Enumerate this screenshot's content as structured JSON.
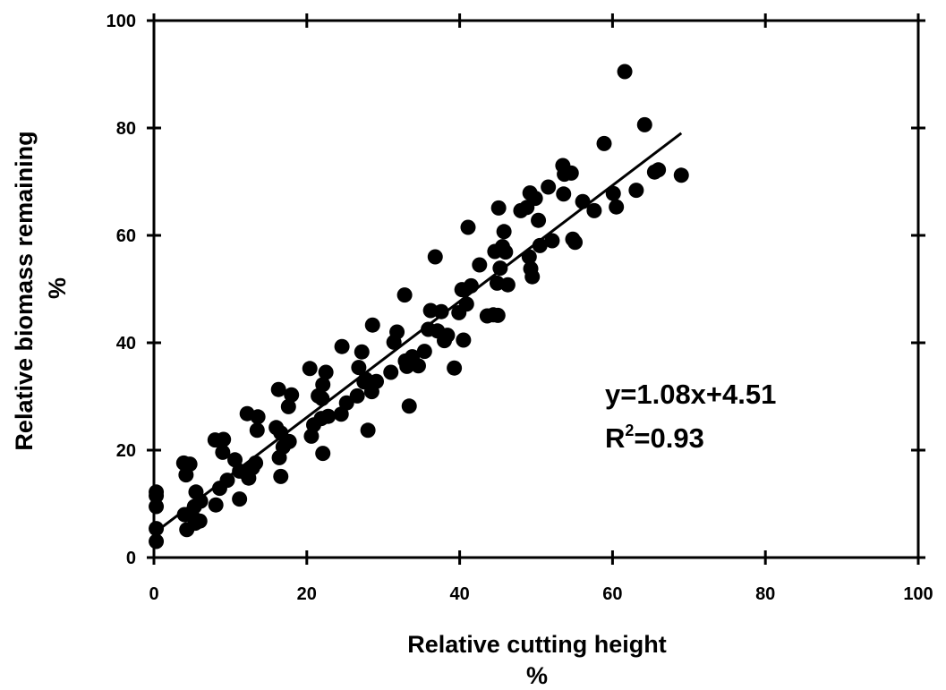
{
  "chart_data": {
    "type": "scatter",
    "title": "",
    "xlabel": "Relative cutting height",
    "xunit": "%",
    "ylabel": "Relative biomass remaining",
    "yunit": "%",
    "xlim": [
      0,
      100
    ],
    "ylim": [
      0,
      100
    ],
    "xticks": [
      "0",
      "20",
      "40",
      "60",
      "80",
      "100"
    ],
    "yticks": [
      "0",
      "20",
      "40",
      "60",
      "80",
      "100"
    ],
    "grid": false,
    "legend": "none",
    "annotation": {
      "equation": "y=1.08x+4.51",
      "r2_prefix": "R",
      "r2_exponent": "2",
      "r2_value": "=0.93"
    },
    "trendline": {
      "slope": 1.08,
      "intercept": 4.51,
      "x_start": 0,
      "x_end": 69
    },
    "marker_color": "#000000",
    "points": [
      [
        0.3,
        12.2
      ],
      [
        0.3,
        11.5
      ],
      [
        0.3,
        9.5
      ],
      [
        0.3,
        5.4
      ],
      [
        0.3,
        3.0
      ],
      [
        3.9,
        17.6
      ],
      [
        4.2,
        15.4
      ],
      [
        4.7,
        17.4
      ],
      [
        4.0,
        8.0
      ],
      [
        4.3,
        5.2
      ],
      [
        5.0,
        7.8
      ],
      [
        5.3,
        9.5
      ],
      [
        5.5,
        12.2
      ],
      [
        5.4,
        6.4
      ],
      [
        6.0,
        6.8
      ],
      [
        6.1,
        10.5
      ],
      [
        8.0,
        21.9
      ],
      [
        8.1,
        9.8
      ],
      [
        8.6,
        12.9
      ],
      [
        9.1,
        22.0
      ],
      [
        9.0,
        19.6
      ],
      [
        9.6,
        14.4
      ],
      [
        10.6,
        18.2
      ],
      [
        11.2,
        10.9
      ],
      [
        11.2,
        16.1
      ],
      [
        12.0,
        15.8
      ],
      [
        12.2,
        26.8
      ],
      [
        12.4,
        14.8
      ],
      [
        12.9,
        16.7
      ],
      [
        13.3,
        17.6
      ],
      [
        13.5,
        23.7
      ],
      [
        13.6,
        26.2
      ],
      [
        16.0,
        24.2
      ],
      [
        16.3,
        31.3
      ],
      [
        16.4,
        18.6
      ],
      [
        16.6,
        15.1
      ],
      [
        16.6,
        23.2
      ],
      [
        16.9,
        20.6
      ],
      [
        17.6,
        28.1
      ],
      [
        17.7,
        21.6
      ],
      [
        18.0,
        30.3
      ],
      [
        20.4,
        35.2
      ],
      [
        20.6,
        22.6
      ],
      [
        20.9,
        24.7
      ],
      [
        21.5,
        30.1
      ],
      [
        21.9,
        25.9
      ],
      [
        22.0,
        29.6
      ],
      [
        22.1,
        32.2
      ],
      [
        22.1,
        19.4
      ],
      [
        22.5,
        34.5
      ],
      [
        22.8,
        26.3
      ],
      [
        24.5,
        26.7
      ],
      [
        24.6,
        39.3
      ],
      [
        25.2,
        28.8
      ],
      [
        26.6,
        30.1
      ],
      [
        26.8,
        35.4
      ],
      [
        27.2,
        38.3
      ],
      [
        27.5,
        32.7
      ],
      [
        27.7,
        33.2
      ],
      [
        28.0,
        23.7
      ],
      [
        28.5,
        30.9
      ],
      [
        28.6,
        43.3
      ],
      [
        29.1,
        32.8
      ],
      [
        31.0,
        34.5
      ],
      [
        31.4,
        40.1
      ],
      [
        31.8,
        42.0
      ],
      [
        32.8,
        48.9
      ],
      [
        32.9,
        36.6
      ],
      [
        33.1,
        35.6
      ],
      [
        33.4,
        28.2
      ],
      [
        33.8,
        37.4
      ],
      [
        34.6,
        35.7
      ],
      [
        35.4,
        38.4
      ],
      [
        35.9,
        42.5
      ],
      [
        36.2,
        46.0
      ],
      [
        36.8,
        56.0
      ],
      [
        37.1,
        42.2
      ],
      [
        37.6,
        45.8
      ],
      [
        38.0,
        40.4
      ],
      [
        38.4,
        41.4
      ],
      [
        39.3,
        35.3
      ],
      [
        39.9,
        45.6
      ],
      [
        40.3,
        49.9
      ],
      [
        40.5,
        40.5
      ],
      [
        40.9,
        47.2
      ],
      [
        41.1,
        61.5
      ],
      [
        41.5,
        50.6
      ],
      [
        42.6,
        54.5
      ],
      [
        43.6,
        45.0
      ],
      [
        44.4,
        45.2
      ],
      [
        44.6,
        57.0
      ],
      [
        44.9,
        51.1
      ],
      [
        45.0,
        45.1
      ],
      [
        45.1,
        65.1
      ],
      [
        45.3,
        53.9
      ],
      [
        45.6,
        57.9
      ],
      [
        45.8,
        60.7
      ],
      [
        46.0,
        56.9
      ],
      [
        46.3,
        50.8
      ],
      [
        48.0,
        64.6
      ],
      [
        48.8,
        65.2
      ],
      [
        49.1,
        56.0
      ],
      [
        49.2,
        67.9
      ],
      [
        49.3,
        53.8
      ],
      [
        49.5,
        52.3
      ],
      [
        49.9,
        66.9
      ],
      [
        50.3,
        62.8
      ],
      [
        50.5,
        58.1
      ],
      [
        51.6,
        69.0
      ],
      [
        52.1,
        59.0
      ],
      [
        53.5,
        73.0
      ],
      [
        53.6,
        67.7
      ],
      [
        53.7,
        71.4
      ],
      [
        54.6,
        71.6
      ],
      [
        54.8,
        59.3
      ],
      [
        55.1,
        58.7
      ],
      [
        56.1,
        66.3
      ],
      [
        57.6,
        64.6
      ],
      [
        58.9,
        77.1
      ],
      [
        60.1,
        67.8
      ],
      [
        60.5,
        65.3
      ],
      [
        61.6,
        90.5
      ],
      [
        63.1,
        68.4
      ],
      [
        64.2,
        80.6
      ],
      [
        65.5,
        71.8
      ],
      [
        66.0,
        72.2
      ],
      [
        69.0,
        71.2
      ]
    ]
  }
}
